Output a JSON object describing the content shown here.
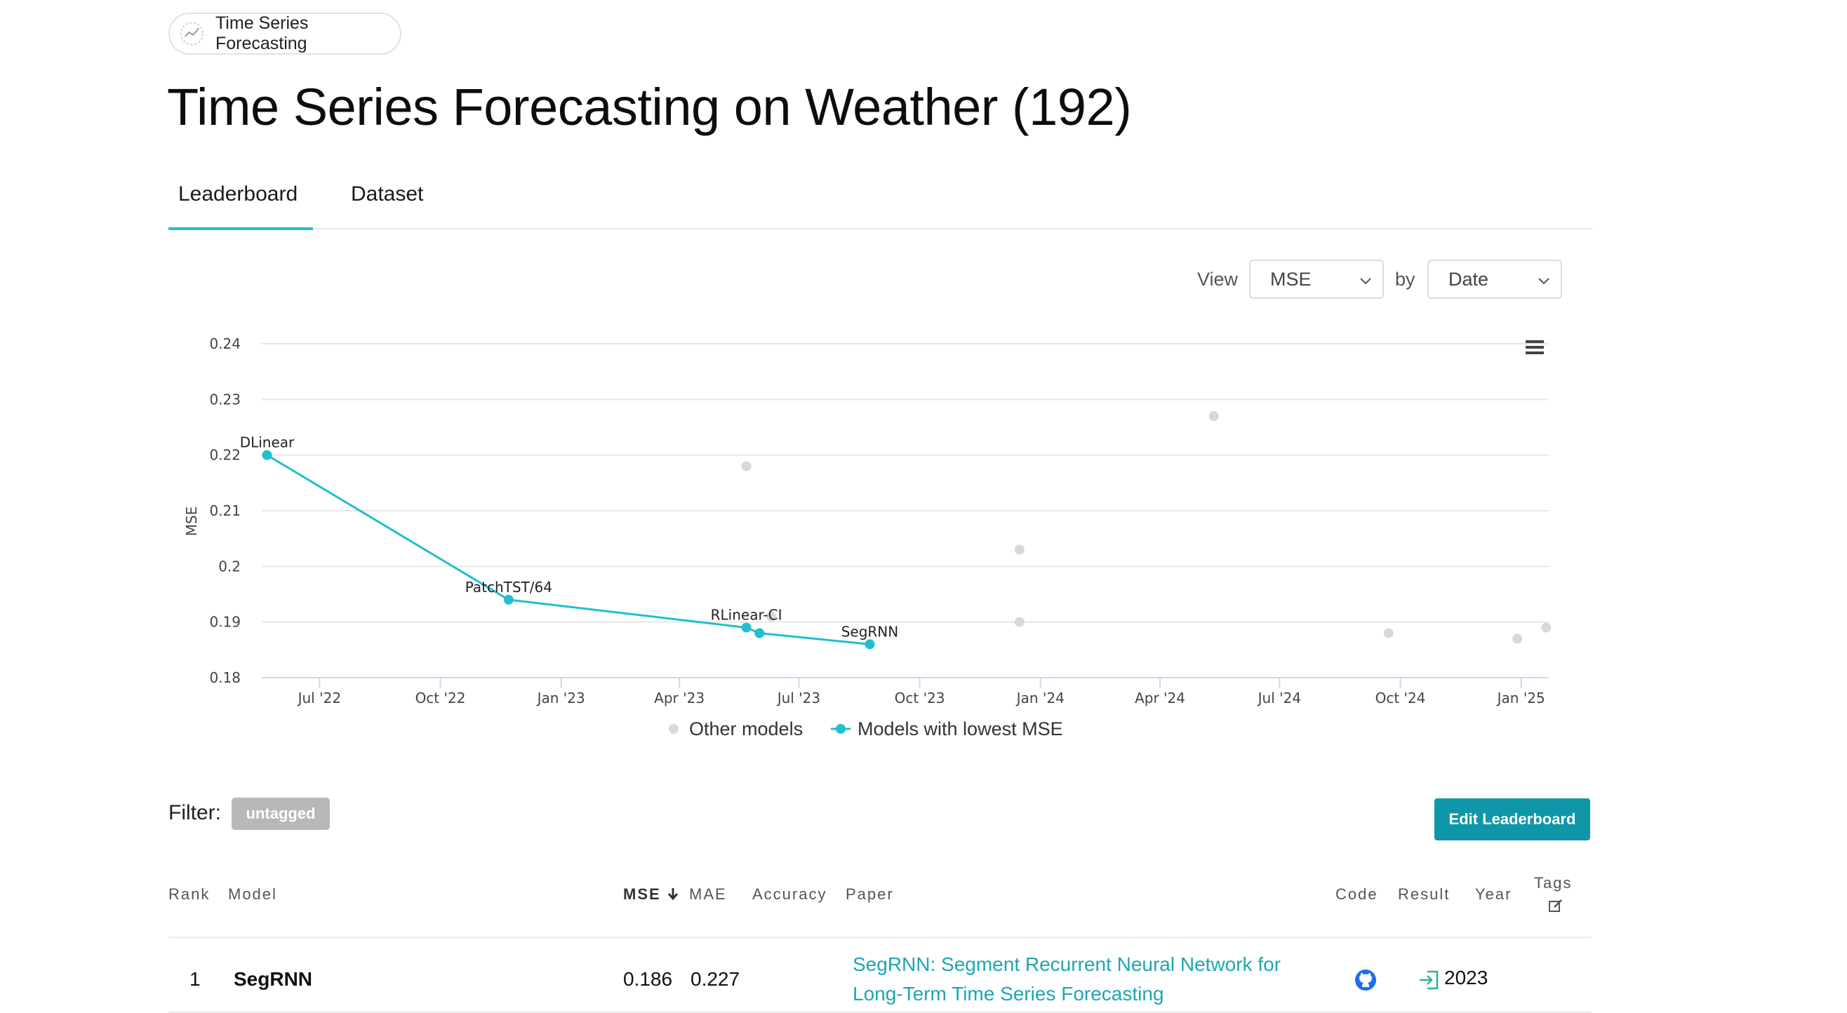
{
  "task_chip": {
    "label": "Time Series Forecasting"
  },
  "page_title": "Time Series Forecasting on Weather (192)",
  "tabs": [
    {
      "label": "Leaderboard",
      "active": true
    },
    {
      "label": "Dataset",
      "active": false
    }
  ],
  "view_controls": {
    "view_label": "View",
    "metric_value": "MSE",
    "by_label": "by",
    "by_value": "Date"
  },
  "chart_data": {
    "type": "scatter",
    "ylabel": "MSE",
    "xlabel": "",
    "ylim": [
      0.18,
      0.24
    ],
    "y_ticks": [
      "0.18",
      "0.19",
      "0.2",
      "0.21",
      "0.22",
      "0.23",
      "0.24"
    ],
    "x_ticks": [
      "Jul '22",
      "Oct '22",
      "Jan '23",
      "Apr '23",
      "Jul '23",
      "Oct '23",
      "Jan '24",
      "Apr '24",
      "Jul '24",
      "Oct '24",
      "Jan '25"
    ],
    "x_range": [
      "2022-05-18",
      "2025-01-22"
    ],
    "legend_position": "bottom-center",
    "colors": {
      "best": "#21bfcf",
      "other": "#d8d8d8",
      "grid": "#e6e6e6"
    },
    "series": [
      {
        "name": "Models with lowest MSE",
        "type": "line",
        "points": [
          {
            "date": "2022-05-22",
            "value": 0.22,
            "label": "DLinear"
          },
          {
            "date": "2022-11-22",
            "value": 0.194,
            "label": "PatchTST/64"
          },
          {
            "date": "2023-05-22",
            "value": 0.189,
            "label": "RLinear-CI"
          },
          {
            "date": "2023-06-01",
            "value": 0.188,
            "label": ""
          },
          {
            "date": "2023-08-24",
            "value": 0.186,
            "label": "SegRNN"
          }
        ]
      },
      {
        "name": "Other models",
        "type": "scatter",
        "points": [
          {
            "date": "2023-05-22",
            "value": 0.218
          },
          {
            "date": "2023-06-10",
            "value": 0.191
          },
          {
            "date": "2023-12-16",
            "value": 0.203
          },
          {
            "date": "2023-12-16",
            "value": 0.19
          },
          {
            "date": "2024-05-12",
            "value": 0.227
          },
          {
            "date": "2024-09-22",
            "value": 0.188
          },
          {
            "date": "2024-12-29",
            "value": 0.187
          },
          {
            "date": "2025-01-20",
            "value": 0.189
          }
        ]
      }
    ]
  },
  "filter": {
    "label": "Filter:",
    "tag": "untagged"
  },
  "edit_button": "Edit Leaderboard",
  "table": {
    "headers": {
      "rank": "Rank",
      "model": "Model",
      "mse": "MSE",
      "mae": "MAE",
      "accuracy": "Accuracy",
      "paper": "Paper",
      "code": "Code",
      "result": "Result",
      "year": "Year",
      "tags": "Tags"
    },
    "rows": [
      {
        "rank": "1",
        "model": "SegRNN",
        "mse": "0.186",
        "mae": "0.227",
        "accuracy": "",
        "paper": "SegRNN: Segment Recurrent Neural Network for Long-Term Time Series Forecasting",
        "code_icon": "github-icon",
        "result_icon": "enter-icon",
        "year": "2023"
      }
    ]
  }
}
